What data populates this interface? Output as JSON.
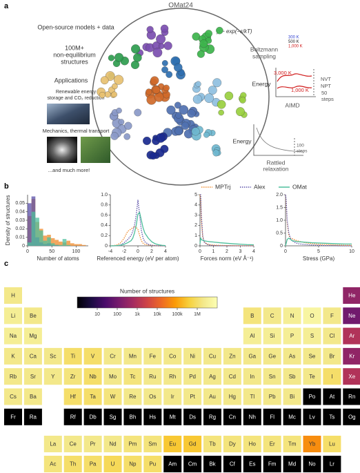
{
  "panel_a": {
    "label": "a",
    "title": "OMat24",
    "models": "Open-source models + data",
    "structures": [
      "100M+",
      "non-equilibrium",
      "structures"
    ],
    "applications": "Applications",
    "app1": [
      "Renewable energy",
      "storage and CO₂ reduction"
    ],
    "app2": "Mechanics, thermal transport",
    "more": "...and much more!",
    "boltzmann": {
      "formula": "p ~ exp(−ε/kT)",
      "temps": [
        "300 K",
        "500 K",
        "1,000 K"
      ],
      "label": [
        "Boltzmann",
        "sampling"
      ]
    },
    "aimd": {
      "energy": "Energy",
      "t_high": "3,000 K",
      "t_low": "1,000 K",
      "ensembles": [
        "NVT",
        "NPT"
      ],
      "steps": [
        "50",
        "steps"
      ],
      "label": "AIMD"
    },
    "rattled": {
      "energy": "Energy",
      "steps": [
        "100",
        "steps"
      ],
      "label": [
        "Rattled",
        "relaxation"
      ]
    }
  },
  "panel_b_label": "b",
  "chart_data": [
    {
      "type": "histogram",
      "xlabel": "Number of atoms",
      "ylabel": "Density of structures",
      "bins": [
        0,
        8,
        16,
        24,
        32,
        40,
        48,
        56,
        64,
        72,
        80,
        88,
        96,
        104,
        112,
        120
      ],
      "series": [
        {
          "color": "#ef8a2a",
          "values": [
            0.035,
            0.055,
            0.028,
            0.02,
            0.012,
            0.013,
            0.009,
            0.007,
            0.005,
            0.004,
            0.006,
            0.003,
            0.002,
            0.002,
            0.001
          ]
        },
        {
          "color": "#5a4fa8",
          "values": [
            0.05,
            0.058,
            0.01,
            0.004,
            0.002,
            0.003,
            0.001,
            0.001,
            0,
            0,
            0,
            0,
            0,
            0,
            0
          ]
        },
        {
          "color": "#4dbf9c",
          "values": [
            0.004,
            0.04,
            0.033,
            0.018,
            0.006,
            0.01,
            0.003,
            0.001,
            0.001,
            0.008,
            0.001,
            0,
            0,
            0,
            0
          ]
        }
      ],
      "xlim": [
        0,
        125
      ],
      "ylim": [
        0,
        0.06
      ],
      "xticks": [
        0,
        50,
        100
      ],
      "yticks": [
        0,
        0.01,
        0.02,
        0.03,
        0.04,
        0.05
      ]
    },
    {
      "type": "line",
      "xlabel": "Referenced energy (eV per atom)",
      "x": [
        -4,
        -3.5,
        -3,
        -2.5,
        -2,
        -1.5,
        -1,
        -0.75,
        -0.5,
        -0.25,
        0,
        0.25,
        0.5,
        0.75,
        1,
        1.5,
        2,
        2.5,
        3,
        3.5,
        4
      ],
      "series": [
        {
          "name": "MPTrj",
          "color": "#ef8a2a",
          "dash": true,
          "values": [
            0,
            0.005,
            0.02,
            0.06,
            0.15,
            0.28,
            0.33,
            0.35,
            0.38,
            0.36,
            0.32,
            0.2,
            0.1,
            0.05,
            0.03,
            0.015,
            0.01,
            0.005,
            0,
            0,
            0
          ]
        },
        {
          "name": "Alex",
          "color": "#5a4fa8",
          "dash": true,
          "values": [
            0,
            0,
            0.005,
            0.02,
            0.06,
            0.12,
            0.2,
            0.28,
            0.4,
            0.6,
            0.9,
            0.6,
            0.3,
            0.15,
            0.08,
            0.03,
            0.01,
            0.005,
            0,
            0,
            0
          ]
        },
        {
          "name": "OMat",
          "color": "#4dbf9c",
          "dash": false,
          "values": [
            0,
            0,
            0.005,
            0.01,
            0.03,
            0.06,
            0.1,
            0.15,
            0.25,
            0.4,
            0.62,
            0.65,
            0.5,
            0.35,
            0.25,
            0.15,
            0.08,
            0.04,
            0.02,
            0.01,
            0.005
          ]
        }
      ],
      "xlim": [
        -4,
        4
      ],
      "ylim": [
        0,
        1
      ],
      "xticks": [
        -4,
        -2,
        0,
        2,
        4
      ],
      "yticks": [
        0,
        0.2,
        0.4,
        0.6,
        0.8,
        {
          "value": 1,
          "label": "1.0"
        }
      ]
    },
    {
      "type": "line",
      "xlabel": "Forces norm (eV Å⁻¹)",
      "x": [
        0,
        0.05,
        0.1,
        0.2,
        0.3,
        0.5,
        0.75,
        1,
        1.5,
        2,
        2.5,
        3,
        3.5,
        4
      ],
      "series": [
        {
          "color": "#ef8a2a",
          "dash": true,
          "values": [
            5,
            4.5,
            2.5,
            0.9,
            0.4,
            0.2,
            0.1,
            0.07,
            0.04,
            0.03,
            0.02,
            0.01,
            0.01,
            0.01
          ]
        },
        {
          "color": "#5a4fa8",
          "dash": true,
          "values": [
            5,
            5,
            3,
            1,
            0.4,
            0.15,
            0.06,
            0.03,
            0.01,
            0.005,
            0,
            0,
            0,
            0
          ]
        },
        {
          "color": "#4dbf9c",
          "dash": false,
          "values": [
            0.2,
            0.8,
            0.6,
            0.55,
            0.5,
            0.45,
            0.4,
            0.37,
            0.3,
            0.25,
            0.2,
            0.16,
            0.12,
            0.1
          ]
        }
      ],
      "xlim": [
        0,
        4
      ],
      "ylim": [
        0,
        5
      ],
      "xticks": [
        0,
        1,
        2,
        3,
        4
      ],
      "yticks": [
        0,
        1,
        2,
        3,
        4,
        5
      ]
    },
    {
      "type": "line",
      "xlabel": "Stress (GPa)",
      "x": [
        0,
        0.1,
        0.25,
        0.5,
        0.75,
        1,
        1.5,
        2,
        3,
        4,
        5,
        6,
        7,
        8,
        9,
        10
      ],
      "series": [
        {
          "color": "#ef8a2a",
          "dash": true,
          "values": [
            2,
            1.6,
            0.9,
            0.4,
            0.3,
            0.28,
            0.22,
            0.18,
            0.12,
            0.08,
            0.06,
            0.05,
            0.04,
            0.03,
            0.02,
            0.02
          ]
        },
        {
          "color": "#5a4fa8",
          "dash": true,
          "values": [
            2,
            1.8,
            1,
            0.5,
            0.3,
            0.2,
            0.12,
            0.08,
            0.05,
            0.03,
            0.02,
            0.01,
            0.01,
            0,
            0,
            0
          ]
        },
        {
          "color": "#4dbf9c",
          "dash": false,
          "values": [
            0,
            0.1,
            0.25,
            0.3,
            0.25,
            0.2,
            0.18,
            0.16,
            0.14,
            0.12,
            0.11,
            0.1,
            0.09,
            0.08,
            0.07,
            0.07
          ]
        }
      ],
      "xlim": [
        0,
        10
      ],
      "ylim": [
        0,
        2
      ],
      "xticks": [
        0,
        5,
        10
      ],
      "yticks": [
        0,
        0.5,
        {
          "value": 1,
          "label": "1.0"
        },
        1.5,
        {
          "value": 2,
          "label": "2.0"
        }
      ]
    }
  ],
  "periodic_table": {
    "label": "c",
    "colorbar_title": "Number of structures",
    "colormap": "inferno",
    "log_scale": true,
    "clim": [
      1,
      10000000
    ],
    "colorbar_ticks": [
      10,
      100,
      {
        "value": 1000,
        "label": "1k"
      },
      {
        "value": 10000,
        "label": "10k"
      },
      {
        "value": 100000,
        "label": "100k"
      },
      {
        "value": 1000000,
        "label": "1M"
      }
    ],
    "periods": [
      [
        {
          "symbol": "H",
          "count": 2000000
        },
        {
          "symbol": "He",
          "count": 300
        }
      ],
      [
        {
          "symbol": "Li",
          "count": 3000000
        },
        {
          "symbol": "Be",
          "count": 2000000
        },
        {
          "symbol": "B",
          "count": 1500000
        },
        {
          "symbol": "C",
          "count": 2000000
        },
        {
          "symbol": "N",
          "count": 3000000
        },
        {
          "symbol": "O",
          "count": 5000000
        },
        {
          "symbol": "F",
          "count": 2000000
        },
        {
          "symbol": "Ne",
          "count": 100
        }
      ],
      [
        {
          "symbol": "Na",
          "count": 3000000
        },
        {
          "symbol": "Mg",
          "count": 3000000
        },
        {
          "symbol": "Al",
          "count": 3000000
        },
        {
          "symbol": "Si",
          "count": 3000000
        },
        {
          "symbol": "P",
          "count": 3000000
        },
        {
          "symbol": "S",
          "count": 3000000
        },
        {
          "symbol": "Cl",
          "count": 2000000
        },
        {
          "symbol": "Ar",
          "count": 1000
        }
      ],
      [
        {
          "symbol": "K",
          "count": 2000000
        },
        {
          "symbol": "Ca",
          "count": 2000000
        },
        {
          "symbol": "Sc",
          "count": 2000000
        },
        {
          "symbol": "Ti",
          "count": 1000000
        },
        {
          "symbol": "V",
          "count": 1000000
        },
        {
          "symbol": "Cr",
          "count": 2000000
        },
        {
          "symbol": "Mn",
          "count": 2000000
        },
        {
          "symbol": "Fe",
          "count": 2000000
        },
        {
          "symbol": "Co",
          "count": 2000000
        },
        {
          "symbol": "Ni",
          "count": 2000000
        },
        {
          "symbol": "Cu",
          "count": 2000000
        },
        {
          "symbol": "Zn",
          "count": 2000000
        },
        {
          "symbol": "Ga",
          "count": 2000000
        },
        {
          "symbol": "Ge",
          "count": 2000000
        },
        {
          "symbol": "As",
          "count": 2000000
        },
        {
          "symbol": "Se",
          "count": 2000000
        },
        {
          "symbol": "Br",
          "count": 2000000
        },
        {
          "symbol": "Kr",
          "count": 300
        }
      ],
      [
        {
          "symbol": "Rb",
          "count": 2000000
        },
        {
          "symbol": "Sr",
          "count": 2000000
        },
        {
          "symbol": "Y",
          "count": 2000000
        },
        {
          "symbol": "Zr",
          "count": 1500000
        },
        {
          "symbol": "Nb",
          "count": 1000000
        },
        {
          "symbol": "Mo",
          "count": 2000000
        },
        {
          "symbol": "Tc",
          "count": 1500000
        },
        {
          "symbol": "Ru",
          "count": 2000000
        },
        {
          "symbol": "Rh",
          "count": 2000000
        },
        {
          "symbol": "Pd",
          "count": 2000000
        },
        {
          "symbol": "Ag",
          "count": 2000000
        },
        {
          "symbol": "Cd",
          "count": 2000000
        },
        {
          "symbol": "In",
          "count": 2000000
        },
        {
          "symbol": "Sn",
          "count": 2000000
        },
        {
          "symbol": "Sb",
          "count": 2000000
        },
        {
          "symbol": "Te",
          "count": 2000000
        },
        {
          "symbol": "I",
          "count": 1000000
        },
        {
          "symbol": "Xe",
          "count": 1000
        }
      ],
      [
        {
          "symbol": "Cs",
          "count": 2000000
        },
        {
          "symbol": "Ba",
          "count": 2000000
        },
        {
          "symbol": "Hf",
          "count": 1000000
        },
        {
          "symbol": "Ta",
          "count": 1000000
        },
        {
          "symbol": "W",
          "count": 1500000
        },
        {
          "symbol": "Re",
          "count": 2000000
        },
        {
          "symbol": "Os",
          "count": 2000000
        },
        {
          "symbol": "Ir",
          "count": 2000000
        },
        {
          "symbol": "Pt",
          "count": 2000000
        },
        {
          "symbol": "Au",
          "count": 2000000
        },
        {
          "symbol": "Hg",
          "count": 2000000
        },
        {
          "symbol": "Tl",
          "count": 2000000
        },
        {
          "symbol": "Pb",
          "count": 2000000
        },
        {
          "symbol": "Bi",
          "count": 2000000
        },
        {
          "symbol": "Po",
          "count": null
        },
        {
          "symbol": "At",
          "count": null
        },
        {
          "symbol": "Rn",
          "count": null
        }
      ],
      [
        {
          "symbol": "Fr",
          "count": null
        },
        {
          "symbol": "Ra",
          "count": null
        },
        {
          "symbol": "Rf",
          "count": null
        },
        {
          "symbol": "Db",
          "count": null
        },
        {
          "symbol": "Sg",
          "count": null
        },
        {
          "symbol": "Bh",
          "count": null
        },
        {
          "symbol": "Hs",
          "count": null
        },
        {
          "symbol": "Mt",
          "count": null
        },
        {
          "symbol": "Ds",
          "count": null
        },
        {
          "symbol": "Rg",
          "count": null
        },
        {
          "symbol": "Cn",
          "count": null
        },
        {
          "symbol": "Nh",
          "count": null
        },
        {
          "symbol": "Fl",
          "count": null
        },
        {
          "symbol": "Mc",
          "count": null
        },
        {
          "symbol": "Lv",
          "count": null
        },
        {
          "symbol": "Ts",
          "count": null
        },
        {
          "symbol": "Og",
          "count": null
        }
      ]
    ],
    "lanthanides": [
      {
        "symbol": "La",
        "count": 2000000
      },
      {
        "symbol": "Ce",
        "count": 2000000
      },
      {
        "symbol": "Pr",
        "count": 2000000
      },
      {
        "symbol": "Nd",
        "count": 2000000
      },
      {
        "symbol": "Pm",
        "count": 1500000
      },
      {
        "symbol": "Sm",
        "count": 1500000
      },
      {
        "symbol": "Eu",
        "count": 300000
      },
      {
        "symbol": "Gd",
        "count": 300000
      },
      {
        "symbol": "Tb",
        "count": 1500000
      },
      {
        "symbol": "Dy",
        "count": 1500000
      },
      {
        "symbol": "Ho",
        "count": 1500000
      },
      {
        "symbol": "Er",
        "count": 1500000
      },
      {
        "symbol": "Tm",
        "count": 1500000
      },
      {
        "symbol": "Yb",
        "count": 50000
      },
      {
        "symbol": "Lu",
        "count": 1000000
      }
    ],
    "actinides": [
      {
        "symbol": "Ac",
        "count": 1500000
      },
      {
        "symbol": "Th",
        "count": 1000000
      },
      {
        "symbol": "Pa",
        "count": 1000000
      },
      {
        "symbol": "U",
        "count": 700000
      },
      {
        "symbol": "Np",
        "count": 1000000
      },
      {
        "symbol": "Pu",
        "count": 1000000
      },
      {
        "symbol": "Am",
        "count": null
      },
      {
        "symbol": "Cm",
        "count": null
      },
      {
        "symbol": "Bk",
        "count": null
      },
      {
        "symbol": "Cf",
        "count": null
      },
      {
        "symbol": "Es",
        "count": null
      },
      {
        "symbol": "Fm",
        "count": null
      },
      {
        "symbol": "Md",
        "count": null
      },
      {
        "symbol": "No",
        "count": null
      },
      {
        "symbol": "Lr",
        "count": null
      }
    ]
  }
}
